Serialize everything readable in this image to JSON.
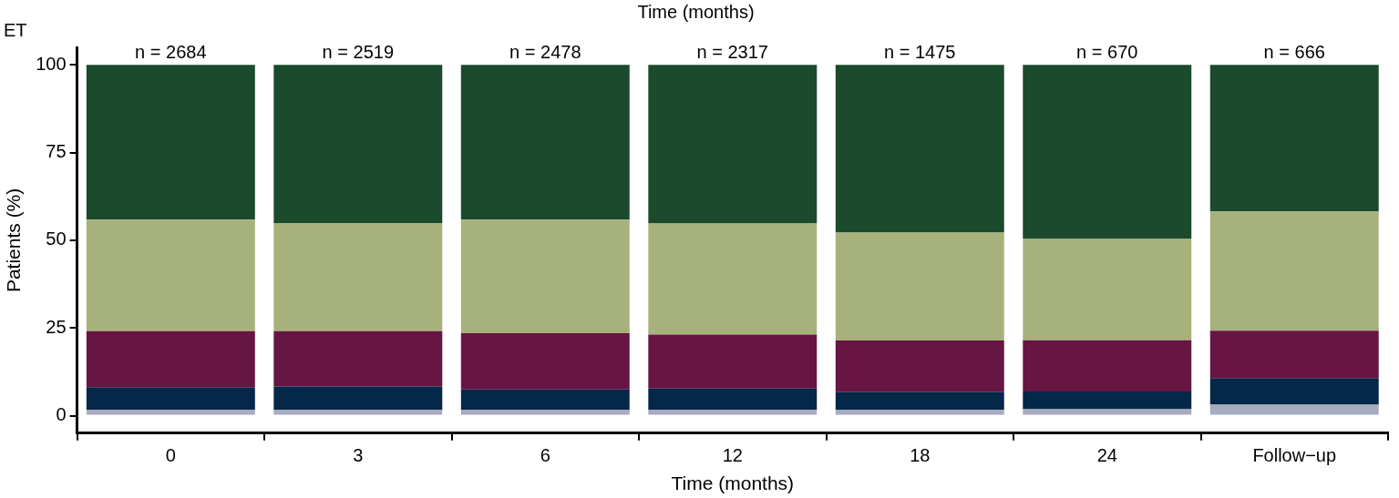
{
  "chart_data": {
    "type": "bar",
    "title": "ET",
    "xlabel": "Time (months)",
    "x2label": "Time (months)",
    "ylabel": "Patients (%)",
    "categories": [
      "0",
      "3",
      "6",
      "12",
      "18",
      "24",
      "Follow−up"
    ],
    "stacked": true,
    "series": [
      {
        "color": "#a7abbf",
        "values": [
          1.7,
          1.7,
          1.7,
          1.7,
          1.7,
          1.8,
          3.1
        ]
      },
      {
        "color": "#052748",
        "values": [
          6.4,
          6.6,
          5.8,
          6.0,
          5.0,
          5.1,
          7.6
        ]
      },
      {
        "color": "#671543",
        "values": [
          16.0,
          15.8,
          16.0,
          15.4,
          14.7,
          14.6,
          13.5
        ]
      },
      {
        "color": "#a7b17c",
        "values": [
          31.8,
          30.8,
          32.4,
          31.7,
          30.8,
          29.0,
          34.0
        ]
      },
      {
        "color": "#1b4a2c",
        "values": [
          44.1,
          45.1,
          44.1,
          45.2,
          47.8,
          49.5,
          41.8
        ]
      }
    ],
    "ylim": [
      -5,
      105
    ],
    "yticks": [
      0,
      25,
      50,
      75,
      100
    ],
    "grid": false,
    "legend": false,
    "annotations": [
      {
        "text": "n = 2684",
        "x": "0",
        "y": 100
      },
      {
        "text": "n = 2519",
        "x": "3",
        "y": 100
      },
      {
        "text": "n = 2478",
        "x": "6",
        "y": 100
      },
      {
        "text": "n = 2317",
        "x": "12",
        "y": 100
      },
      {
        "text": "n = 1475",
        "x": "18",
        "y": 100
      },
      {
        "text": "n = 670",
        "x": "24",
        "y": 100
      },
      {
        "text": "n = 666",
        "x": "Follow−up",
        "y": 100
      }
    ]
  }
}
